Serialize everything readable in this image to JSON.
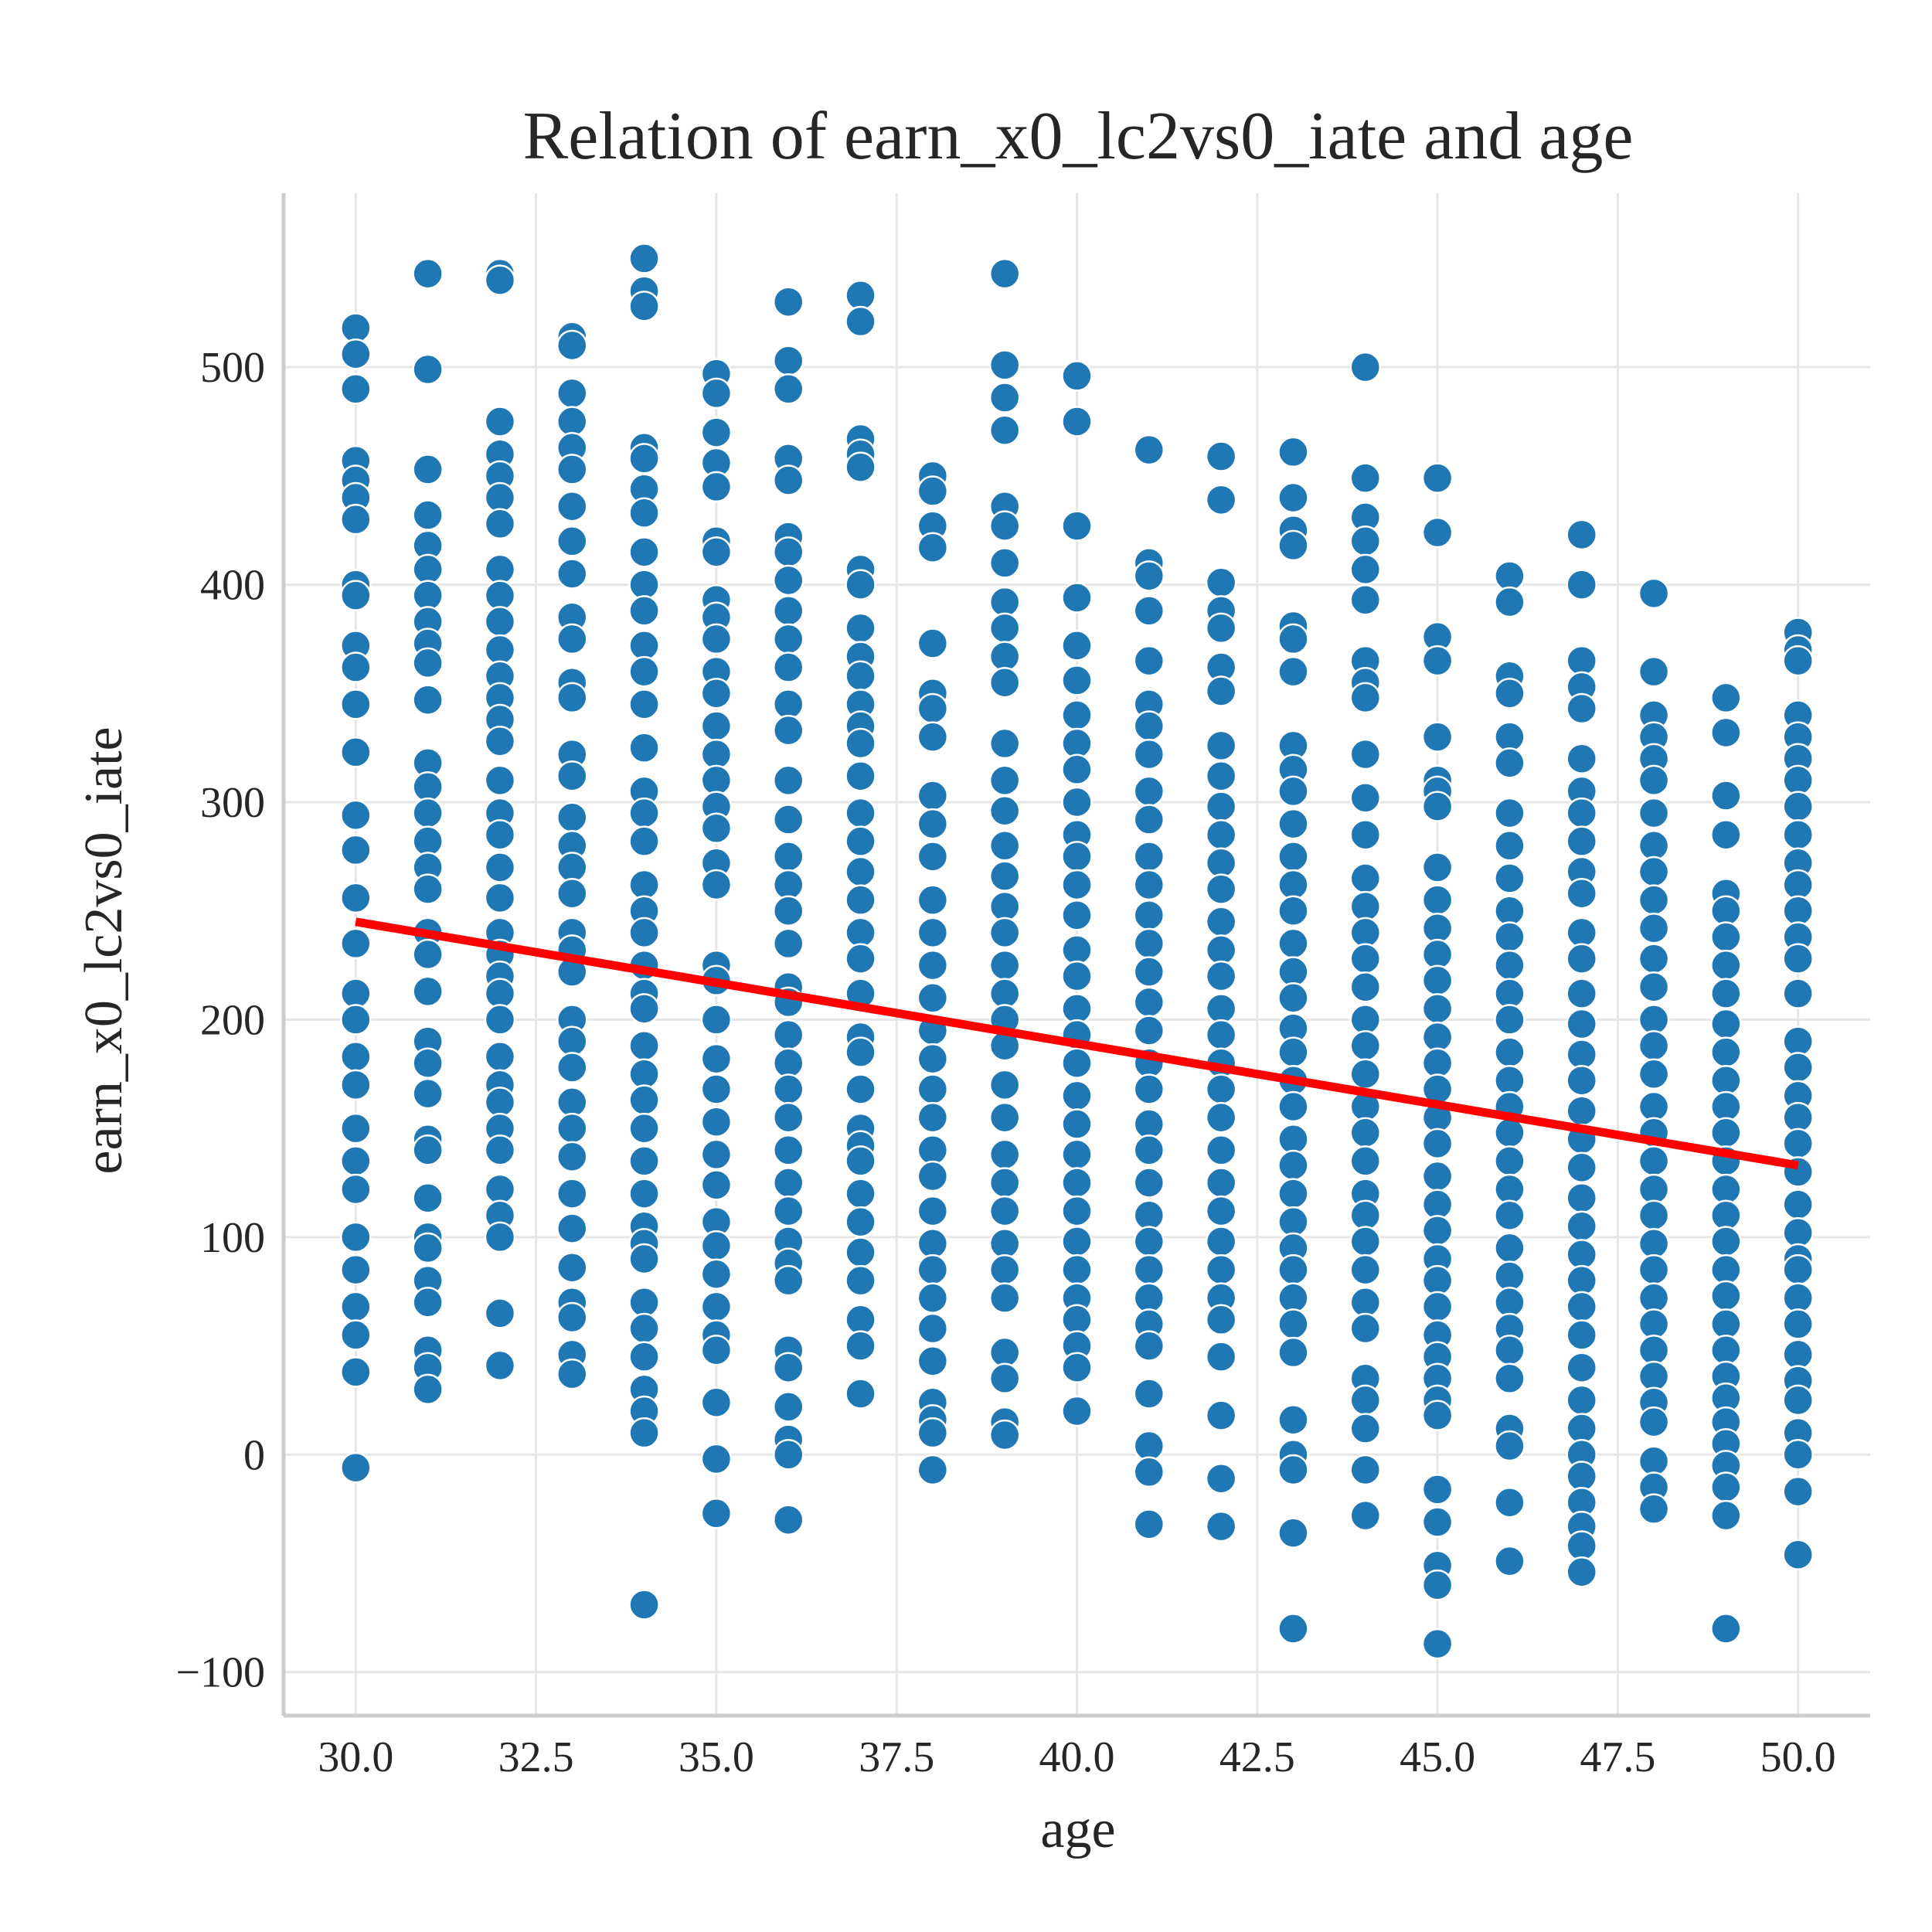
{
  "chart_data": {
    "type": "scatter",
    "title": "Relation of earn_x0_lc2vs0_iate and age",
    "xlabel": "age",
    "ylabel": "earn_x0_lc2vs0_iate",
    "xlim": [
      29.0,
      51.0
    ],
    "ylim": [
      -120,
      580
    ],
    "x_ticks": [
      30.0,
      32.5,
      35.0,
      37.5,
      40.0,
      42.5,
      45.0,
      47.5,
      50.0
    ],
    "x_tick_labels": [
      "30.0",
      "32.5",
      "35.0",
      "37.5",
      "40.0",
      "42.5",
      "45.0",
      "47.5",
      "50.0"
    ],
    "y_ticks": [
      -100,
      0,
      100,
      200,
      300,
      400,
      500
    ],
    "y_tick_labels": [
      "−100",
      "0",
      "100",
      "200",
      "300",
      "400",
      "500"
    ],
    "grid": true,
    "point_color": "#1f77b4",
    "line_color": "#ff0000",
    "series": [
      {
        "type": "scatter",
        "points": [
          {
            "age": 30,
            "values": [
              518,
              506,
              490,
              457,
              448,
              440,
              430,
              400,
              395,
              372,
              362,
              345,
              323,
              294,
              278,
              256,
              235,
              212,
              200,
              183,
              170,
              150,
              135,
              122,
              100,
              85,
              68,
              55,
              38,
              -6
            ]
          },
          {
            "age": 31,
            "values": [
              543,
              499,
              453,
              432,
              418,
              407,
              395,
              383,
              373,
              364,
              347,
              318,
              307,
              295,
              282,
              270,
              260,
              240,
              230,
              213,
              190,
              180,
              166,
              145,
              140,
              118,
              100,
              95,
              80,
              70,
              48,
              40,
              30
            ]
          },
          {
            "age": 32,
            "values": [
              543,
              540,
              475,
              460,
              450,
              440,
              428,
              407,
              395,
              383,
              370,
              358,
              348,
              338,
              328,
              310,
              295,
              285,
              270,
              256,
              240,
              230,
              220,
              212,
              200,
              183,
              170,
              162,
              150,
              140,
              122,
              110,
              100,
              65,
              41
            ]
          },
          {
            "age": 33,
            "values": [
              514,
              510,
              488,
              475,
              463,
              453,
              436,
              420,
              405,
              385,
              375,
              355,
              348,
              322,
              312,
              293,
              280,
              270,
              258,
              240,
              232,
              222,
              200,
              190,
              178,
              162,
              150,
              137,
              120,
              104,
              86,
              70,
              63,
              46,
              37
            ]
          },
          {
            "age": 34,
            "values": [
              550,
              535,
              528,
              463,
              458,
              444,
              433,
              415,
              400,
              388,
              372,
              360,
              345,
              325,
              305,
              295,
              282,
              262,
              250,
              240,
              225,
              212,
              205,
              188,
              175,
              163,
              150,
              135,
              120,
              105,
              97,
              90,
              70,
              58,
              45,
              30,
              20,
              10,
              -69
            ]
          },
          {
            "age": 35,
            "values": [
              497,
              488,
              470,
              456,
              445,
              420,
              415,
              393,
              385,
              375,
              360,
              350,
              335,
              322,
              310,
              298,
              288,
              272,
              262,
              225,
              218,
              200,
              182,
              168,
              153,
              138,
              124,
              107,
              96,
              83,
              68,
              55,
              48,
              24,
              -2,
              -27
            ]
          },
          {
            "age": 36,
            "values": [
              530,
              503,
              490,
              458,
              448,
              422,
              415,
              402,
              388,
              375,
              362,
              345,
              333,
              310,
              292,
              275,
              262,
              250,
              235,
              215,
              208,
              193,
              180,
              168,
              155,
              140,
              125,
              112,
              98,
              88,
              80,
              48,
              40,
              22,
              7,
              0,
              -30
            ]
          },
          {
            "age": 37,
            "values": [
              533,
              521,
              467,
              460,
              454,
              407,
              400,
              380,
              367,
              358,
              345,
              335,
              327,
              312,
              295,
              282,
              268,
              255,
              240,
              228,
              212,
              192,
              185,
              168,
              150,
              142,
              135,
              120,
              107,
              93,
              80,
              62,
              50,
              28
            ]
          },
          {
            "age": 38,
            "values": [
              450,
              443,
              427,
              417,
              373,
              350,
              343,
              330,
              303,
              290,
              275,
              255,
              240,
              225,
              210,
              195,
              182,
              168,
              155,
              140,
              128,
              112,
              97,
              85,
              72,
              58,
              43,
              24,
              16,
              10,
              -7
            ]
          },
          {
            "age": 39,
            "values": [
              543,
              501,
              486,
              471,
              436,
              427,
              410,
              392,
              380,
              367,
              355,
              327,
              310,
              296,
              280,
              266,
              252,
              240,
              225,
              212,
              200,
              188,
              170,
              155,
              138,
              125,
              112,
              97,
              85,
              72,
              47,
              35,
              15,
              9
            ]
          },
          {
            "age": 40,
            "values": [
              496,
              475,
              427,
              394,
              372,
              356,
              340,
              327,
              315,
              300,
              285,
              275,
              262,
              248,
              232,
              220,
              205,
              193,
              180,
              165,
              152,
              138,
              125,
              112,
              98,
              85,
              72,
              62,
              50,
              40,
              20
            ]
          },
          {
            "age": 41,
            "values": [
              462,
              410,
              404,
              388,
              365,
              345,
              335,
              322,
              305,
              292,
              275,
              262,
              248,
              235,
              222,
              208,
              195,
              180,
              168,
              152,
              140,
              125,
              110,
              98,
              85,
              72,
              60,
              50,
              28,
              4,
              -8,
              -32
            ]
          },
          {
            "age": 42,
            "values": [
              459,
              439,
              401,
              388,
              380,
              362,
              351,
              326,
              312,
              298,
              285,
              272,
              260,
              245,
              232,
              220,
              205,
              193,
              180,
              168,
              155,
              140,
              125,
              112,
              98,
              85,
              72,
              62,
              45,
              18,
              -11,
              -33
            ]
          },
          {
            "age": 43,
            "values": [
              461,
              440,
              425,
              418,
              381,
              375,
              360,
              326,
              315,
              305,
              290,
              275,
              262,
              250,
              235,
              222,
              210,
              196,
              185,
              172,
              160,
              145,
              133,
              120,
              107,
              95,
              85,
              72,
              60,
              47,
              16,
              0,
              -7,
              -36,
              -80
            ]
          },
          {
            "age": 44,
            "values": [
              500,
              449,
              431,
              420,
              407,
              393,
              365,
              355,
              348,
              322,
              302,
              285,
              265,
              252,
              240,
              228,
              215,
              200,
              188,
              175,
              160,
              148,
              135,
              120,
              110,
              98,
              85,
              70,
              58,
              35,
              25,
              12,
              -7,
              -28
            ]
          },
          {
            "age": 45,
            "values": [
              449,
              424,
              376,
              365,
              330,
              310,
              305,
              298,
              270,
              255,
              242,
              230,
              218,
              205,
              192,
              180,
              168,
              155,
              143,
              128,
              115,
              103,
              90,
              80,
              68,
              55,
              45,
              35,
              25,
              18,
              -16,
              -31,
              -51,
              -60,
              -87
            ]
          },
          {
            "age": 46,
            "values": [
              404,
              392,
              358,
              350,
              330,
              318,
              295,
              280,
              265,
              250,
              238,
              225,
              212,
              200,
              185,
              172,
              160,
              148,
              135,
              122,
              110,
              95,
              82,
              70,
              58,
              48,
              35,
              12,
              4,
              -22,
              -49
            ]
          },
          {
            "age": 47,
            "values": [
              423,
              400,
              365,
              353,
              343,
              320,
              305,
              295,
              282,
              268,
              258,
              240,
              228,
              212,
              198,
              184,
              172,
              158,
              145,
              132,
              118,
              105,
              92,
              80,
              68,
              55,
              40,
              25,
              12,
              0,
              -10,
              -22,
              -33,
              -42,
              -54
            ]
          },
          {
            "age": 48,
            "values": [
              396,
              360,
              340,
              330,
              320,
              310,
              295,
              280,
              268,
              255,
              242,
              228,
              215,
              200,
              188,
              175,
              160,
              148,
              135,
              122,
              110,
              97,
              85,
              72,
              60,
              48,
              36,
              24,
              15,
              -3,
              -15,
              -25
            ]
          },
          {
            "age": 49,
            "values": [
              348,
              332,
              303,
              285,
              258,
              250,
              238,
              225,
              212,
              198,
              185,
              172,
              160,
              148,
              135,
              122,
              110,
              98,
              85,
              73,
              60,
              48,
              36,
              26,
              15,
              5,
              -5,
              -15,
              -28,
              -80
            ]
          },
          {
            "age": 50,
            "values": [
              378,
              370,
              365,
              340,
              330,
              320,
              310,
              298,
              285,
              272,
              262,
              250,
              238,
              228,
              212,
              190,
              178,
              165,
              155,
              143,
              130,
              115,
              102,
              90,
              85,
              72,
              60,
              46,
              34,
              25,
              10,
              0,
              -17,
              -46
            ]
          }
        ]
      },
      {
        "type": "line",
        "x": [
          30,
          50
        ],
        "y": [
          245,
          133
        ]
      }
    ]
  }
}
